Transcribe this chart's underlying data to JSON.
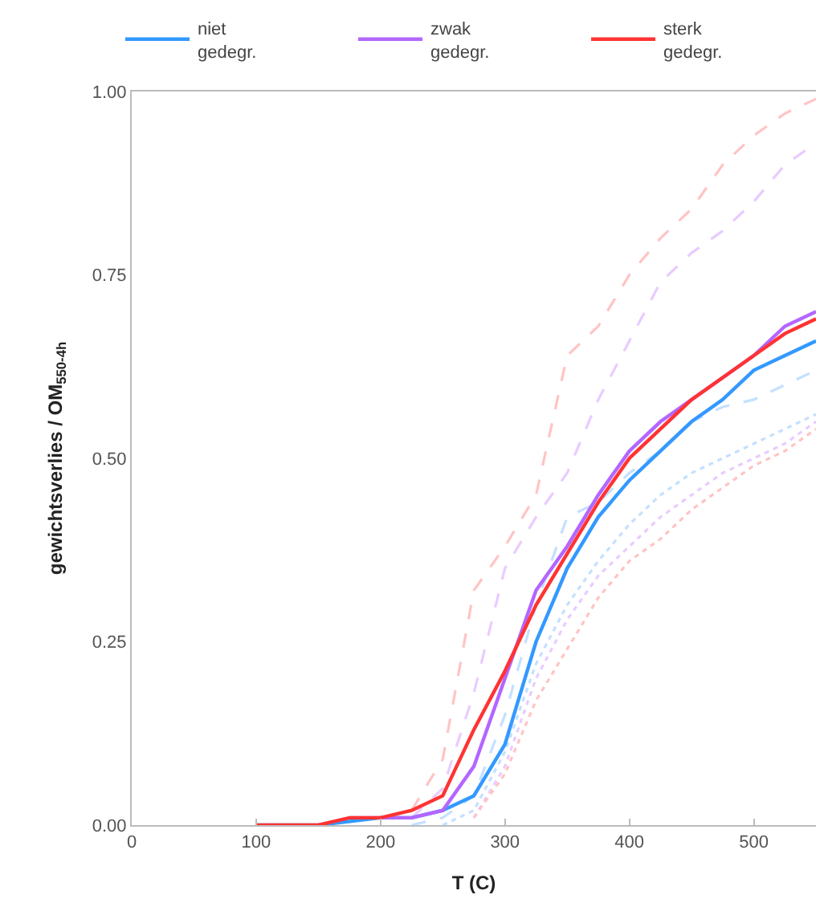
{
  "chart_data": {
    "type": "line",
    "xlabel": "T (C)",
    "ylabel": "gewichtsverlies / OM$_{550-4h}$",
    "xlim": [
      0,
      550
    ],
    "xticks": [
      0,
      100,
      200,
      300,
      400,
      500
    ],
    "ylim": [
      0,
      1
    ],
    "yticks": [
      {
        "value": 0,
        "label": "0.00"
      },
      {
        "value": 0.25,
        "label": "0.25"
      },
      {
        "value": 0.5,
        "label": "0.50"
      },
      {
        "value": 0.75,
        "label": "0.75"
      },
      {
        "value": 1,
        "label": "1.00"
      }
    ],
    "legend": "top",
    "marker": "none",
    "series": [
      {
        "line_style": "dashed",
        "color": "#ffc4c4",
        "x": [
          225,
          250,
          275,
          300,
          325,
          350,
          375,
          400,
          425,
          450,
          475,
          500,
          525,
          550
        ],
        "values": [
          0.02,
          0.09,
          0.32,
          0.38,
          0.45,
          0.64,
          0.68,
          0.75,
          0.8,
          0.84,
          0.9,
          0.94,
          0.97,
          0.99
        ]
      },
      {
        "line_style": "dashed",
        "color": "#e8ccff",
        "x": [
          225,
          250,
          275,
          300,
          325,
          350,
          375,
          400,
          425,
          450,
          475,
          500,
          525,
          550
        ],
        "values": [
          0.01,
          0.05,
          0.18,
          0.35,
          0.42,
          0.48,
          0.58,
          0.66,
          0.74,
          0.78,
          0.81,
          0.85,
          0.9,
          0.93
        ]
      },
      {
        "line_style": "dashed",
        "color": "#c4e0ff",
        "x": [
          225,
          250,
          275,
          300,
          325,
          350,
          375,
          400,
          425,
          450,
          475,
          500,
          525,
          550
        ],
        "values": [
          0.0,
          0.01,
          0.04,
          0.15,
          0.3,
          0.42,
          0.44,
          0.48,
          0.51,
          0.55,
          0.57,
          0.58,
          0.6,
          0.62
        ]
      },
      {
        "line_style": "dotted",
        "color": "#c4e0ff",
        "x": [
          250,
          275,
          300,
          325,
          350,
          375,
          400,
          425,
          450,
          475,
          500,
          525,
          550
        ],
        "values": [
          0.0,
          0.02,
          0.1,
          0.22,
          0.3,
          0.36,
          0.41,
          0.45,
          0.48,
          0.5,
          0.52,
          0.54,
          0.56
        ]
      },
      {
        "line_style": "dotted",
        "color": "#e8ccff",
        "x": [
          275,
          300,
          325,
          350,
          375,
          400,
          425,
          450,
          475,
          500,
          525,
          550
        ],
        "values": [
          0.01,
          0.08,
          0.2,
          0.28,
          0.34,
          0.38,
          0.42,
          0.45,
          0.48,
          0.5,
          0.52,
          0.55
        ]
      },
      {
        "line_style": "dotted",
        "color": "#ffc4c4",
        "x": [
          275,
          300,
          325,
          350,
          375,
          400,
          425,
          450,
          475,
          500,
          525,
          550
        ],
        "values": [
          0.01,
          0.07,
          0.17,
          0.24,
          0.31,
          0.36,
          0.39,
          0.43,
          0.46,
          0.49,
          0.51,
          0.54
        ]
      },
      {
        "name": "niet gedegr.",
        "line_style": "solid",
        "color": "#3399ff",
        "x": [
          100,
          150,
          200,
          225,
          250,
          275,
          300,
          325,
          350,
          375,
          400,
          425,
          450,
          475,
          500,
          525,
          550
        ],
        "values": [
          0.0,
          0.0,
          0.01,
          0.01,
          0.02,
          0.04,
          0.11,
          0.25,
          0.35,
          0.42,
          0.47,
          0.51,
          0.55,
          0.58,
          0.62,
          0.64,
          0.66
        ]
      },
      {
        "name": "zwak gedegr.",
        "line_style": "solid",
        "color": "#b366ff",
        "x": [
          175,
          200,
          225,
          250,
          275,
          300,
          325,
          350,
          375,
          400,
          425,
          450,
          475,
          500,
          525,
          550
        ],
        "values": [
          0.01,
          0.01,
          0.01,
          0.02,
          0.08,
          0.2,
          0.32,
          0.38,
          0.45,
          0.51,
          0.55,
          0.58,
          0.61,
          0.64,
          0.68,
          0.7
        ]
      },
      {
        "name": "sterk gedegr.",
        "line_style": "solid",
        "color": "#ff3333",
        "x": [
          100,
          150,
          175,
          200,
          225,
          250,
          275,
          300,
          325,
          350,
          375,
          400,
          425,
          450,
          475,
          500,
          525,
          550
        ],
        "values": [
          0.0,
          0.0,
          0.01,
          0.01,
          0.02,
          0.04,
          0.13,
          0.21,
          0.3,
          0.37,
          0.44,
          0.5,
          0.54,
          0.58,
          0.61,
          0.64,
          0.67,
          0.69
        ]
      }
    ]
  }
}
